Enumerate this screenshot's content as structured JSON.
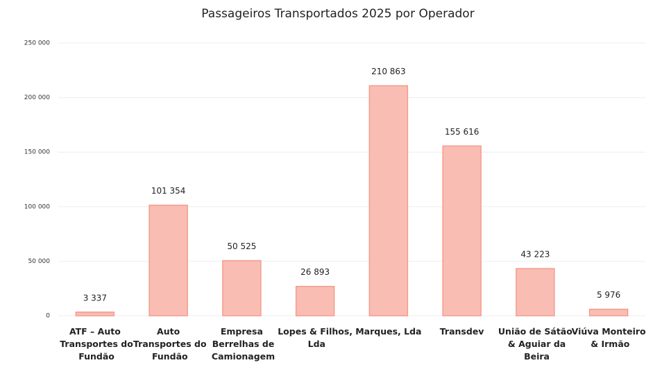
{
  "chart_data": {
    "type": "bar",
    "title": "Passageiros Transportados 2025 por Operador",
    "categories": [
      "ATF – Auto Transportes do Fundão",
      "Auto Transportes do Fundão",
      "Empresa Berrelhas de Camionagem",
      "Lopes & Filhos, Lda",
      "Marques, Lda",
      "Transdev",
      "União de Sátão & Aguiar da Beira",
      "Viúva Monteiro & Irmão"
    ],
    "values": [
      3337,
      101354,
      50525,
      26893,
      210863,
      155616,
      43223,
      5976
    ],
    "value_labels": [
      "3 337",
      "101 354",
      "50 525",
      "26 893",
      "210 863",
      "155 616",
      "43 223",
      "5 976"
    ],
    "color": "#f9bdb3",
    "ylim": [
      0,
      250000
    ],
    "yticks": [
      {
        "value": 0,
        "label": "0"
      },
      {
        "value": 50000,
        "label": "50 000"
      },
      {
        "value": 100000,
        "label": "100 000"
      },
      {
        "value": 150000,
        "label": "150 000"
      },
      {
        "value": 200000,
        "label": "200 000"
      },
      {
        "value": 250000,
        "label": "250 000"
      }
    ],
    "grid": true
  }
}
